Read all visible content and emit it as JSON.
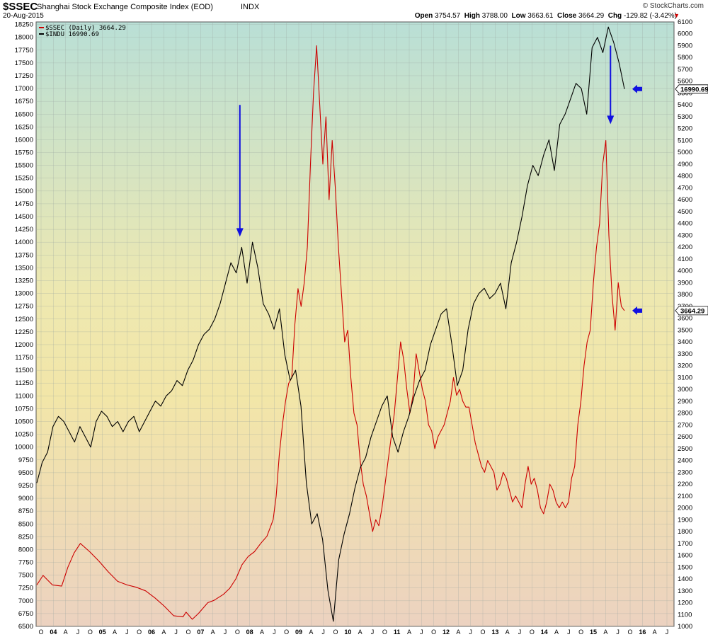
{
  "header": {
    "symbol": "$SSEC",
    "title": "Shanghai Stock Exchange Composite Index (EOD)",
    "exchange": "INDX",
    "date": "20-Aug-2015",
    "brand": "© StockCharts.com",
    "ohlc": {
      "open_label": "Open",
      "open": "3754.57",
      "high_label": "High",
      "high": "3788.00",
      "low_label": "Low",
      "low": "3663.61",
      "close_label": "Close",
      "close": "3664.29",
      "chg_label": "Chg",
      "chg": "-129.82 (-3.42%)"
    },
    "chg_icon": "down-triangle"
  },
  "chart_data": {
    "type": "line",
    "x_tick_labels": [
      "O",
      "04",
      "A",
      "J",
      "O",
      "05",
      "A",
      "J",
      "O",
      "06",
      "A",
      "J",
      "O",
      "07",
      "A",
      "J",
      "O",
      "08",
      "A",
      "J",
      "O",
      "09",
      "A",
      "J",
      "O",
      "10",
      "A",
      "J",
      "O",
      "11",
      "A",
      "J",
      "O",
      "12",
      "A",
      "J",
      "O",
      "13",
      "A",
      "J",
      "O",
      "14",
      "A",
      "J",
      "O",
      "15",
      "A",
      "J",
      "O",
      "16",
      "A",
      "J"
    ],
    "left_axis": {
      "min": 6500,
      "max": 18300,
      "ticks": [
        6500,
        6750,
        7000,
        7250,
        7500,
        7750,
        8000,
        8250,
        8500,
        8750,
        9000,
        9250,
        9500,
        9750,
        10000,
        10250,
        10500,
        10750,
        11000,
        11250,
        11500,
        11750,
        12000,
        12250,
        12500,
        12750,
        13000,
        13250,
        13500,
        13750,
        14000,
        14250,
        14500,
        14750,
        15000,
        15250,
        15500,
        15750,
        16000,
        16250,
        16500,
        16750,
        17000,
        17250,
        17500,
        17750,
        18000,
        18250
      ]
    },
    "right_axis": {
      "min": 1000,
      "max": 6100,
      "ticks": [
        1000,
        1100,
        1200,
        1300,
        1400,
        1500,
        1600,
        1700,
        1800,
        1900,
        2000,
        2100,
        2200,
        2300,
        2400,
        2500,
        2600,
        2700,
        2800,
        2900,
        3000,
        3100,
        3200,
        3300,
        3400,
        3500,
        3600,
        3700,
        3800,
        3900,
        4000,
        4100,
        4200,
        4300,
        4400,
        4500,
        4600,
        4700,
        4800,
        4900,
        5000,
        5100,
        5200,
        5300,
        5400,
        5500,
        5600,
        5700,
        5800,
        5900,
        6000,
        6100
      ]
    },
    "grid": true,
    "legend_position": "top-left",
    "series": [
      {
        "name": "$SSEC (Daily) 3664.29",
        "color": "#cc0000",
        "axis": "right",
        "last_value_label": "3664.29",
        "points": [
          [
            0,
            1350
          ],
          [
            2,
            1430
          ],
          [
            5,
            1350
          ],
          [
            8,
            1340
          ],
          [
            10,
            1500
          ],
          [
            12,
            1620
          ],
          [
            14,
            1700
          ],
          [
            17,
            1630
          ],
          [
            20,
            1550
          ],
          [
            23,
            1460
          ],
          [
            26,
            1380
          ],
          [
            29,
            1350
          ],
          [
            32,
            1330
          ],
          [
            35,
            1300
          ],
          [
            38,
            1240
          ],
          [
            41,
            1170
          ],
          [
            44,
            1090
          ],
          [
            47,
            1080
          ],
          [
            48,
            1120
          ],
          [
            50,
            1060
          ],
          [
            52,
            1110
          ],
          [
            55,
            1200
          ],
          [
            57,
            1220
          ],
          [
            60,
            1270
          ],
          [
            62,
            1320
          ],
          [
            64,
            1400
          ],
          [
            66,
            1520
          ],
          [
            68,
            1590
          ],
          [
            70,
            1630
          ],
          [
            72,
            1700
          ],
          [
            74,
            1760
          ],
          [
            76,
            1900
          ],
          [
            77,
            2100
          ],
          [
            78,
            2450
          ],
          [
            79,
            2700
          ],
          [
            80,
            2900
          ],
          [
            81,
            3050
          ],
          [
            82,
            3100
          ],
          [
            83,
            3550
          ],
          [
            84,
            3850
          ],
          [
            85,
            3700
          ],
          [
            86,
            3900
          ],
          [
            87,
            4200
          ],
          [
            88,
            4900
          ],
          [
            89,
            5500
          ],
          [
            90,
            5900
          ],
          [
            91,
            5400
          ],
          [
            92,
            4900
          ],
          [
            93,
            5300
          ],
          [
            94,
            4600
          ],
          [
            95,
            5100
          ],
          [
            96,
            4700
          ],
          [
            97,
            4200
          ],
          [
            98,
            3800
          ],
          [
            99,
            3400
          ],
          [
            100,
            3500
          ],
          [
            101,
            3100
          ],
          [
            102,
            2800
          ],
          [
            103,
            2700
          ],
          [
            104,
            2400
          ],
          [
            105,
            2200
          ],
          [
            106,
            2100
          ],
          [
            107,
            1950
          ],
          [
            108,
            1800
          ],
          [
            109,
            1900
          ],
          [
            110,
            1850
          ],
          [
            111,
            2000
          ],
          [
            112,
            2200
          ],
          [
            113,
            2400
          ],
          [
            114,
            2600
          ],
          [
            115,
            2800
          ],
          [
            116,
            3100
          ],
          [
            117,
            3400
          ],
          [
            118,
            3250
          ],
          [
            119,
            3000
          ],
          [
            120,
            2800
          ],
          [
            121,
            2950
          ],
          [
            122,
            3300
          ],
          [
            123,
            3150
          ],
          [
            124,
            3000
          ],
          [
            125,
            2900
          ],
          [
            126,
            2700
          ],
          [
            127,
            2650
          ],
          [
            128,
            2500
          ],
          [
            129,
            2600
          ],
          [
            130,
            2650
          ],
          [
            131,
            2700
          ],
          [
            132,
            2800
          ],
          [
            133,
            2900
          ],
          [
            134,
            3100
          ],
          [
            135,
            2950
          ],
          [
            136,
            3000
          ],
          [
            137,
            2900
          ],
          [
            138,
            2850
          ],
          [
            139,
            2850
          ],
          [
            140,
            2700
          ],
          [
            141,
            2550
          ],
          [
            142,
            2450
          ],
          [
            143,
            2350
          ],
          [
            144,
            2300
          ],
          [
            145,
            2400
          ],
          [
            146,
            2350
          ],
          [
            147,
            2300
          ],
          [
            148,
            2150
          ],
          [
            149,
            2200
          ],
          [
            150,
            2300
          ],
          [
            151,
            2250
          ],
          [
            152,
            2150
          ],
          [
            153,
            2050
          ],
          [
            154,
            2100
          ],
          [
            155,
            2050
          ],
          [
            156,
            2000
          ],
          [
            157,
            2200
          ],
          [
            158,
            2350
          ],
          [
            159,
            2200
          ],
          [
            160,
            2250
          ],
          [
            161,
            2150
          ],
          [
            162,
            2000
          ],
          [
            163,
            1950
          ],
          [
            164,
            2050
          ],
          [
            165,
            2200
          ],
          [
            166,
            2150
          ],
          [
            167,
            2050
          ],
          [
            168,
            2000
          ],
          [
            169,
            2050
          ],
          [
            170,
            2000
          ],
          [
            171,
            2050
          ],
          [
            172,
            2250
          ],
          [
            173,
            2350
          ],
          [
            174,
            2700
          ],
          [
            175,
            2900
          ],
          [
            176,
            3200
          ],
          [
            177,
            3400
          ],
          [
            178,
            3500
          ],
          [
            179,
            3900
          ],
          [
            180,
            4200
          ],
          [
            181,
            4400
          ],
          [
            182,
            4900
          ],
          [
            183,
            5100
          ],
          [
            184,
            4300
          ],
          [
            185,
            3800
          ],
          [
            186,
            3500
          ],
          [
            187,
            3900
          ],
          [
            188,
            3700
          ],
          [
            189,
            3664
          ]
        ]
      },
      {
        "name": "$INDU 16990.69",
        "color": "#000000",
        "axis": "left",
        "last_value_label": "16990.69",
        "points": [
          [
            0,
            9300
          ],
          [
            1,
            9700
          ],
          [
            2,
            9900
          ],
          [
            3,
            10400
          ],
          [
            4,
            10600
          ],
          [
            5,
            10500
          ],
          [
            6,
            10300
          ],
          [
            7,
            10100
          ],
          [
            8,
            10400
          ],
          [
            9,
            10200
          ],
          [
            10,
            10000
          ],
          [
            11,
            10500
          ],
          [
            12,
            10700
          ],
          [
            13,
            10600
          ],
          [
            14,
            10400
          ],
          [
            15,
            10500
          ],
          [
            16,
            10300
          ],
          [
            17,
            10500
          ],
          [
            18,
            10600
          ],
          [
            19,
            10300
          ],
          [
            20,
            10500
          ],
          [
            21,
            10700
          ],
          [
            22,
            10900
          ],
          [
            23,
            10800
          ],
          [
            24,
            11000
          ],
          [
            25,
            11100
          ],
          [
            26,
            11300
          ],
          [
            27,
            11200
          ],
          [
            28,
            11500
          ],
          [
            29,
            11700
          ],
          [
            30,
            12000
          ],
          [
            31,
            12200
          ],
          [
            32,
            12300
          ],
          [
            33,
            12500
          ],
          [
            34,
            12800
          ],
          [
            35,
            13200
          ],
          [
            36,
            13600
          ],
          [
            37,
            13400
          ],
          [
            38,
            13900
          ],
          [
            39,
            13200
          ],
          [
            40,
            14000
          ],
          [
            41,
            13500
          ],
          [
            42,
            12800
          ],
          [
            43,
            12600
          ],
          [
            44,
            12300
          ],
          [
            45,
            12700
          ],
          [
            46,
            11800
          ],
          [
            47,
            11300
          ],
          [
            48,
            11500
          ],
          [
            49,
            10800
          ],
          [
            50,
            9300
          ],
          [
            51,
            8500
          ],
          [
            52,
            8700
          ],
          [
            53,
            8200
          ],
          [
            54,
            7200
          ],
          [
            55,
            6600
          ],
          [
            56,
            7800
          ],
          [
            57,
            8300
          ],
          [
            58,
            8700
          ],
          [
            59,
            9200
          ],
          [
            60,
            9600
          ],
          [
            61,
            9800
          ],
          [
            62,
            10200
          ],
          [
            63,
            10500
          ],
          [
            64,
            10800
          ],
          [
            65,
            11000
          ],
          [
            66,
            10200
          ],
          [
            67,
            9900
          ],
          [
            68,
            10300
          ],
          [
            69,
            10600
          ],
          [
            70,
            11000
          ],
          [
            71,
            11300
          ],
          [
            72,
            11500
          ],
          [
            73,
            12000
          ],
          [
            74,
            12300
          ],
          [
            75,
            12600
          ],
          [
            76,
            12700
          ],
          [
            77,
            12000
          ],
          [
            78,
            11200
          ],
          [
            79,
            11500
          ],
          [
            80,
            12300
          ],
          [
            81,
            12800
          ],
          [
            82,
            13000
          ],
          [
            83,
            13100
          ],
          [
            84,
            12900
          ],
          [
            85,
            13000
          ],
          [
            86,
            13200
          ],
          [
            87,
            12700
          ],
          [
            88,
            13600
          ],
          [
            89,
            14000
          ],
          [
            90,
            14500
          ],
          [
            91,
            15100
          ],
          [
            92,
            15500
          ],
          [
            93,
            15300
          ],
          [
            94,
            15700
          ],
          [
            95,
            16000
          ],
          [
            96,
            15400
          ],
          [
            97,
            16300
          ],
          [
            98,
            16500
          ],
          [
            99,
            16800
          ],
          [
            100,
            17100
          ],
          [
            101,
            17000
          ],
          [
            102,
            16500
          ],
          [
            103,
            17800
          ],
          [
            104,
            18000
          ],
          [
            105,
            17700
          ],
          [
            106,
            18200
          ],
          [
            107,
            17900
          ],
          [
            108,
            17500
          ],
          [
            109,
            16990
          ]
        ]
      }
    ],
    "annotations": [
      {
        "type": "arrow-down",
        "color": "#1010e0",
        "x_year": 2007.8,
        "from_right_value": 5400,
        "to_right_value": 4300
      },
      {
        "type": "arrow-down",
        "color": "#1010e0",
        "x_year": 2015.35,
        "from_right_value": 5900,
        "to_right_value": 5250
      },
      {
        "type": "arrow-left",
        "color": "#1010e0",
        "near_series": "$INDU",
        "at_left_value": 16990
      },
      {
        "type": "arrow-left",
        "color": "#1010e0",
        "near_series": "$SSEC",
        "at_right_value": 3664
      }
    ]
  }
}
